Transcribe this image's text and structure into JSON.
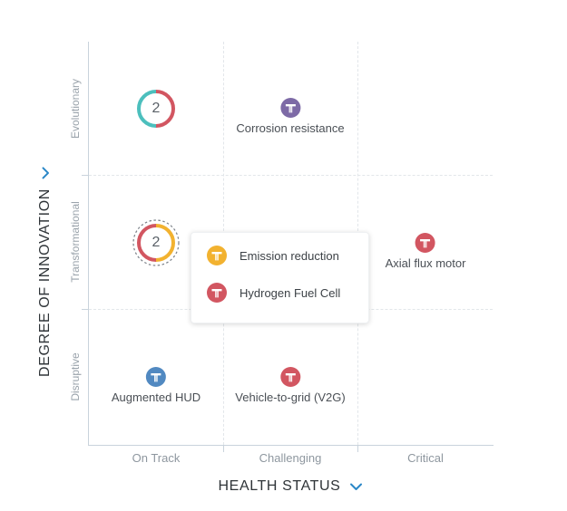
{
  "axes": {
    "y_title": "DEGREE OF INNOVATION",
    "x_title": "HEALTH STATUS",
    "rows": [
      "Evolutionary",
      "Transformational",
      "Disruptive"
    ],
    "columns": [
      "On Track",
      "Challenging",
      "Critical"
    ]
  },
  "colors": {
    "teal": "#4cbfbd",
    "red": "#d25661",
    "yellow": "#f2b230",
    "purple": "#7d6aa6",
    "blue": "#5189c1",
    "accent": "#2a87c7"
  },
  "clusters": [
    {
      "count": "2",
      "row": "Evolutionary",
      "column": "On Track",
      "colors": [
        "teal",
        "red"
      ],
      "selected": false
    },
    {
      "count": "2",
      "row": "Transformational",
      "column": "On Track",
      "colors": [
        "yellow",
        "red"
      ],
      "selected": true
    }
  ],
  "items": [
    {
      "label": "Corrosion resistance",
      "row": "Evolutionary",
      "column": "Challenging",
      "color": "purple",
      "icon": "technology-pin-icon"
    },
    {
      "label": "Axial flux motor",
      "row": "Transformational",
      "column": "Critical",
      "color": "red",
      "icon": "technology-pin-icon"
    },
    {
      "label": "Augmented HUD",
      "row": "Disruptive",
      "column": "On Track",
      "color": "blue",
      "icon": "technology-pin-icon"
    },
    {
      "label": "Vehicle-to-grid (V2G)",
      "row": "Disruptive",
      "column": "Challenging",
      "color": "red",
      "icon": "technology-pin-icon"
    }
  ],
  "popup": {
    "items": [
      {
        "label": "Emission reduction",
        "color": "yellow",
        "icon": "technology-pin-icon"
      },
      {
        "label": "Hydrogen Fuel Cell",
        "color": "red",
        "icon": "technology-pin-icon"
      }
    ]
  }
}
